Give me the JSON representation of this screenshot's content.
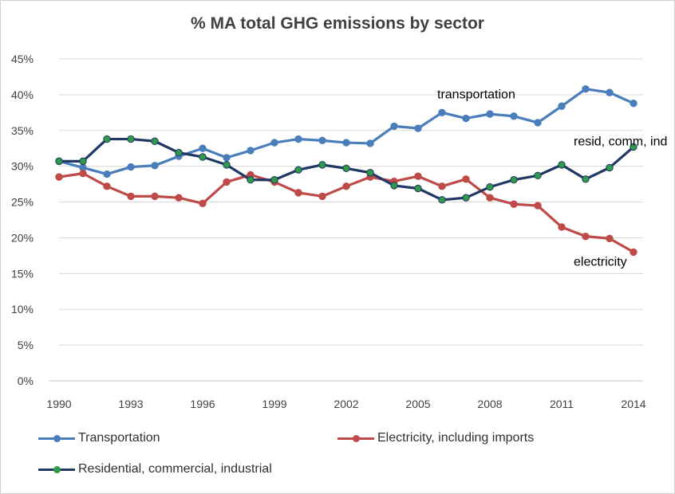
{
  "chart_data": {
    "type": "line",
    "title": "% MA total GHG emissions by sector",
    "xlabel": "",
    "ylabel": "",
    "x": [
      1990,
      1991,
      1992,
      1993,
      1994,
      1995,
      1996,
      1997,
      1998,
      1999,
      2000,
      2001,
      2002,
      2003,
      2004,
      2005,
      2006,
      2007,
      2008,
      2009,
      2010,
      2011,
      2012,
      2013,
      2014
    ],
    "x_tick_labels": [
      "1990",
      "1993",
      "1996",
      "1999",
      "2002",
      "2005",
      "2008",
      "2011",
      "2014"
    ],
    "x_ticks": [
      1990,
      1993,
      1996,
      1999,
      2002,
      2005,
      2008,
      2011,
      2014
    ],
    "y_tick_labels": [
      "0%",
      "5%",
      "10%",
      "15%",
      "20%",
      "25%",
      "30%",
      "35%",
      "40%",
      "45%"
    ],
    "ylim": [
      0,
      45
    ],
    "grid": true,
    "legend_position": "bottom",
    "series": [
      {
        "name": "Transportation",
        "color": "#4a7ebb",
        "marker_color": "#4a7ebb",
        "values": [
          30.7,
          29.8,
          28.9,
          29.9,
          30.1,
          31.4,
          32.5,
          31.2,
          32.2,
          33.3,
          33.8,
          33.6,
          33.3,
          33.2,
          35.6,
          35.3,
          37.5,
          36.7,
          37.3,
          37.0,
          36.1,
          38.4,
          40.8,
          40.3,
          38.8
        ]
      },
      {
        "name": "Electricity, including imports",
        "color": "#be4b48",
        "marker_color": "#be4b48",
        "values": [
          28.5,
          29.0,
          27.2,
          25.8,
          25.8,
          25.6,
          24.8,
          27.8,
          28.8,
          27.8,
          26.3,
          25.8,
          27.2,
          28.5,
          27.9,
          28.6,
          27.2,
          28.2,
          25.6,
          24.7,
          24.5,
          21.5,
          20.2,
          19.9,
          18.0
        ]
      },
      {
        "name": "Residential, commercial, industrial",
        "color": "#1f3864",
        "marker_color": "#2e9a4a",
        "values": [
          30.7,
          30.7,
          33.8,
          33.8,
          33.5,
          31.9,
          31.3,
          30.2,
          28.1,
          28.1,
          29.5,
          30.2,
          29.7,
          29.1,
          27.3,
          26.9,
          25.3,
          25.6,
          27.1,
          28.1,
          28.7,
          30.2,
          28.2,
          29.8,
          32.7
        ]
      }
    ],
    "annotations": [
      {
        "text": "transportation",
        "x": 2005.8,
        "y": 39.5
      },
      {
        "text": "resid, comm, ind",
        "x": 2011.5,
        "y": 32.9
      },
      {
        "text": "electricity",
        "x": 2011.5,
        "y": 16.1
      }
    ]
  }
}
